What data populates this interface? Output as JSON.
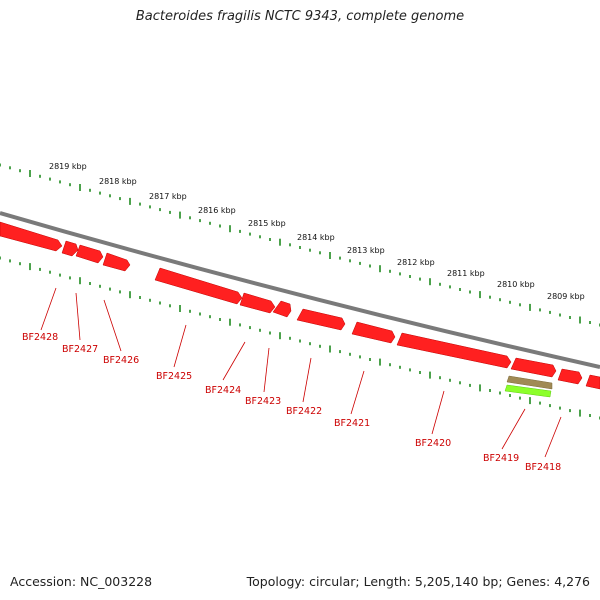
{
  "title": "Bacteroides fragilis NCTC 9343, complete genome",
  "footer": {
    "accession": "Accession: NC_003228",
    "summary": "Topology: circular; Length: 5,205,140 bp; Genes: 4,276"
  },
  "colors": {
    "backbone": "#7a7a7a",
    "tick_green": "#1f8a1f",
    "gene_red": "#ff0000",
    "gene_label": "#cc0000",
    "feature_tan": "#a08a55",
    "feature_lime": "#80ff20"
  },
  "scale_labels": [
    "2819 kbp",
    "2818 kbp",
    "2817 kbp",
    "2816 kbp",
    "2815 kbp",
    "2814 kbp",
    "2813 kbp",
    "2812 kbp",
    "2811 kbp",
    "2810 kbp",
    "2809 kbp"
  ],
  "genes": [
    "BF2428",
    "BF2427",
    "BF2426",
    "BF2425",
    "BF2424",
    "BF2423",
    "BF2422",
    "BF2421",
    "BF2420",
    "BF2419",
    "BF2418"
  ]
}
